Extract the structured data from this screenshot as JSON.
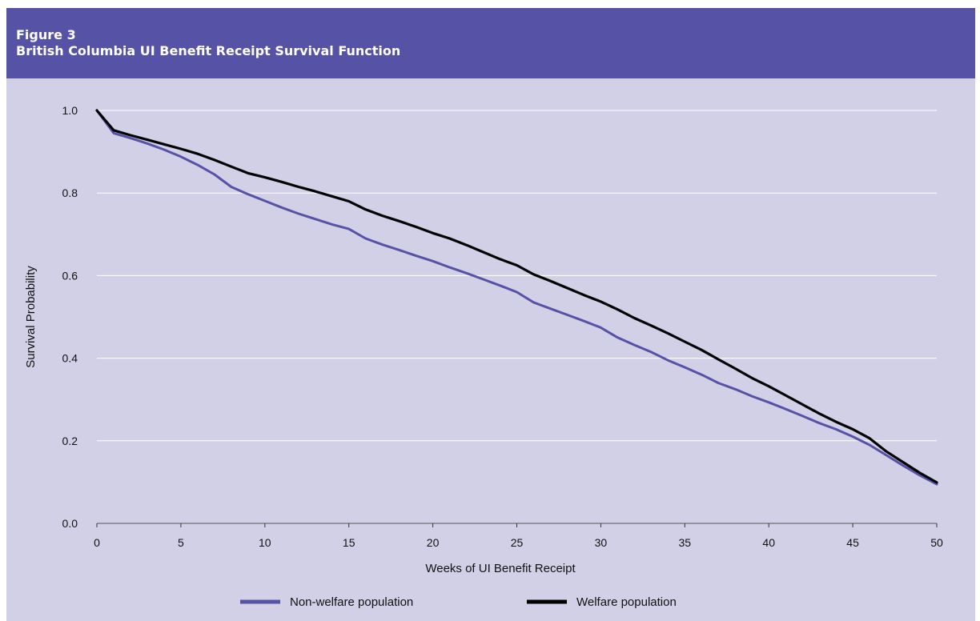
{
  "header": {
    "figure_label": "Figure 3",
    "title": "British Columbia UI Benefit Receipt Survival Function"
  },
  "colors": {
    "header_bg": "#5652a6",
    "plot_bg": "#d2d0e6",
    "non_welfare": "#5652a6",
    "welfare": "#000000",
    "gridline": "#ffffff"
  },
  "chart_data": {
    "type": "line",
    "title": "British Columbia UI Benefit Receipt Survival Function",
    "xlabel": "Weeks of UI Benefit Receipt",
    "ylabel": "Survival Probability",
    "xlim": [
      0,
      50
    ],
    "ylim": [
      0,
      1.0
    ],
    "x_ticks": [
      0,
      5,
      10,
      15,
      20,
      25,
      30,
      35,
      40,
      45,
      50
    ],
    "y_ticks": [
      "0.0",
      "0.2",
      "0.4",
      "0.6",
      "0.8",
      "1.0"
    ],
    "grid": "horizontal",
    "legend_position": "bottom",
    "x": [
      0,
      1,
      2,
      3,
      4,
      5,
      6,
      7,
      8,
      9,
      10,
      11,
      12,
      13,
      14,
      15,
      16,
      17,
      18,
      19,
      20,
      21,
      22,
      23,
      24,
      25,
      26,
      27,
      28,
      29,
      30,
      31,
      32,
      33,
      34,
      35,
      36,
      37,
      38,
      39,
      40,
      41,
      42,
      43,
      44,
      45,
      46,
      47,
      48,
      49,
      50
    ],
    "series": [
      {
        "name": "Non-welfare population",
        "color": "#5652a6",
        "values": [
          1.0,
          0.945,
          0.933,
          0.92,
          0.905,
          0.888,
          0.868,
          0.845,
          0.815,
          0.797,
          0.781,
          0.765,
          0.75,
          0.737,
          0.724,
          0.713,
          0.69,
          0.675,
          0.662,
          0.648,
          0.635,
          0.62,
          0.606,
          0.591,
          0.576,
          0.56,
          0.535,
          0.52,
          0.505,
          0.49,
          0.474,
          0.45,
          0.432,
          0.415,
          0.395,
          0.378,
          0.36,
          0.34,
          0.325,
          0.308,
          0.293,
          0.277,
          0.26,
          0.243,
          0.228,
          0.21,
          0.19,
          0.165,
          0.14,
          0.116,
          0.095
        ]
      },
      {
        "name": "Welfare population",
        "color": "#000000",
        "values": [
          1.0,
          0.952,
          0.94,
          0.929,
          0.918,
          0.907,
          0.895,
          0.88,
          0.864,
          0.848,
          0.838,
          0.827,
          0.815,
          0.804,
          0.792,
          0.78,
          0.76,
          0.745,
          0.732,
          0.718,
          0.703,
          0.69,
          0.674,
          0.657,
          0.64,
          0.625,
          0.603,
          0.587,
          0.57,
          0.553,
          0.537,
          0.518,
          0.497,
          0.479,
          0.46,
          0.44,
          0.42,
          0.397,
          0.375,
          0.352,
          0.332,
          0.31,
          0.288,
          0.266,
          0.246,
          0.228,
          0.206,
          0.174,
          0.148,
          0.122,
          0.099
        ]
      }
    ]
  }
}
